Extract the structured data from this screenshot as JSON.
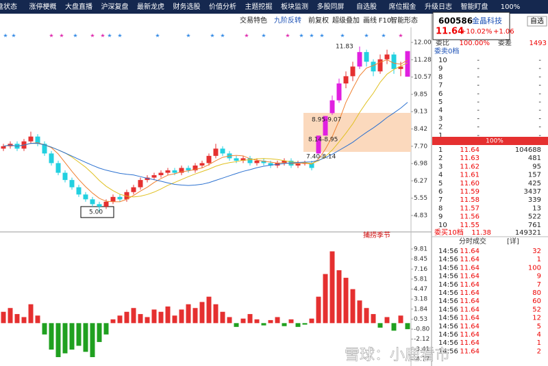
{
  "nav": [
    "盘状态",
    "涨停梗概",
    "大盘直播",
    "沪深复盘",
    "最新龙虎",
    "财务选股",
    "价值分析",
    "主题挖掘",
    "板块监测",
    "多股同屏",
    "自选股",
    "席位掘金",
    "升级日志",
    "智能盯盘",
    "100%"
  ],
  "toolbar": [
    "交易特色",
    "九阶反转",
    "前复权",
    "超级叠加",
    "画线",
    "F10",
    "智能形态"
  ],
  "search": "自选",
  "price_axis": [
    "12.00",
    "11.28",
    "10.57",
    "9.85",
    "9.13",
    "8.42",
    "7.70",
    "6.98",
    "6.27",
    "5.55",
    "4.83"
  ],
  "annotations": [
    "11.83",
    "8.95-9.07",
    "8.14-8.95",
    "7.40-8.14",
    "5.00"
  ],
  "candles": [
    [
      7.6,
      7.8,
      7.5,
      7.7
    ],
    [
      7.7,
      7.9,
      7.6,
      7.8
    ],
    [
      7.8,
      7.9,
      7.5,
      7.6
    ],
    [
      7.6,
      8.0,
      7.5,
      7.9
    ],
    [
      7.9,
      8.3,
      7.8,
      8.1
    ],
    [
      8.1,
      8.2,
      7.7,
      7.8
    ],
    [
      7.8,
      7.9,
      7.3,
      7.4
    ],
    [
      7.4,
      7.5,
      6.9,
      7.0
    ],
    [
      7.0,
      7.1,
      6.5,
      6.6
    ],
    [
      6.6,
      6.7,
      6.2,
      6.3
    ],
    [
      6.3,
      6.4,
      5.9,
      6.0
    ],
    [
      6.0,
      6.1,
      5.6,
      5.7
    ],
    [
      5.7,
      5.8,
      5.4,
      5.5
    ],
    [
      5.5,
      5.6,
      5.2,
      5.3
    ],
    [
      5.3,
      5.4,
      5.0,
      5.2
    ],
    [
      5.2,
      5.5,
      5.1,
      5.4
    ],
    [
      5.4,
      5.7,
      5.3,
      5.6
    ],
    [
      5.6,
      5.7,
      5.4,
      5.5
    ],
    [
      5.5,
      5.9,
      5.4,
      5.8
    ],
    [
      5.8,
      6.1,
      5.7,
      6.0
    ],
    [
      6.0,
      6.4,
      5.9,
      6.3
    ],
    [
      6.3,
      6.5,
      6.2,
      6.4
    ],
    [
      6.4,
      6.6,
      6.3,
      6.5
    ],
    [
      6.5,
      6.7,
      6.4,
      6.6
    ],
    [
      6.6,
      6.8,
      6.5,
      6.7
    ],
    [
      6.7,
      6.8,
      6.5,
      6.6
    ],
    [
      6.6,
      6.9,
      6.5,
      6.8
    ],
    [
      6.8,
      6.9,
      6.6,
      6.7
    ],
    [
      6.7,
      7.0,
      6.6,
      6.9
    ],
    [
      6.9,
      7.1,
      6.8,
      7.0
    ],
    [
      7.0,
      7.4,
      6.9,
      7.3
    ],
    [
      7.3,
      7.8,
      7.2,
      7.6
    ],
    [
      7.6,
      7.7,
      7.3,
      7.4
    ],
    [
      7.4,
      7.5,
      7.1,
      7.2
    ],
    [
      7.2,
      7.3,
      7.0,
      7.1
    ],
    [
      7.1,
      7.3,
      7.0,
      7.2
    ],
    [
      7.2,
      7.3,
      6.9,
      7.0
    ],
    [
      7.0,
      7.2,
      6.9,
      7.1
    ],
    [
      7.1,
      7.2,
      6.9,
      7.0
    ],
    [
      7.0,
      7.1,
      6.8,
      6.9
    ],
    [
      6.9,
      7.1,
      6.8,
      7.0
    ],
    [
      7.0,
      7.2,
      6.9,
      7.1
    ],
    [
      7.1,
      7.2,
      6.8,
      6.9
    ],
    [
      6.9,
      7.1,
      6.8,
      7.0
    ],
    [
      7.0,
      7.1,
      6.9,
      7.0
    ],
    [
      7.0,
      7.1,
      6.7,
      6.8
    ],
    [
      7.4,
      8.14,
      7.4,
      8.14
    ],
    [
      8.14,
      8.95,
      8.14,
      8.95
    ],
    [
      9.07,
      9.8,
      9.0,
      9.6
    ],
    [
      9.6,
      10.5,
      9.5,
      10.3
    ],
    [
      10.3,
      10.8,
      10.1,
      10.6
    ],
    [
      10.6,
      11.2,
      10.4,
      11.0
    ],
    [
      11.0,
      11.83,
      10.9,
      11.6
    ],
    [
      11.6,
      11.7,
      11.0,
      11.2
    ],
    [
      11.2,
      11.3,
      10.6,
      10.8
    ],
    [
      10.8,
      11.5,
      10.7,
      11.3
    ],
    [
      11.3,
      11.7,
      11.1,
      11.5
    ],
    [
      11.5,
      11.6,
      10.7,
      10.9
    ],
    [
      10.9,
      11.2,
      10.6,
      11.0
    ],
    [
      10.58,
      11.64,
      10.58,
      11.64
    ]
  ],
  "indicator": {
    "title": "捕捞季节",
    "axis": [
      "9.81",
      "8.45",
      "7.16",
      "5.81",
      "4.47",
      "3.18",
      "1.84",
      "0.53",
      "-0.80",
      "-2.12",
      "-3.41",
      "-4.77"
    ],
    "values": [
      1.5,
      2.0,
      1.2,
      0.8,
      2.5,
      1.0,
      -1.5,
      -3.5,
      -4.5,
      -4.0,
      -3.5,
      -3.0,
      -3.8,
      -4.5,
      -2.5,
      -1.5,
      0.5,
      1.0,
      1.5,
      2.0,
      1.2,
      0.8,
      1.8,
      1.5,
      2.2,
      1.0,
      1.8,
      2.5,
      2.0,
      2.8,
      3.5,
      2.5,
      1.5,
      0.8,
      -0.5,
      0.6,
      1.2,
      0.5,
      -0.3,
      0.4,
      0.8,
      -0.4,
      0.5,
      -0.5,
      -0.2,
      0.6,
      3.5,
      6.5,
      9.5,
      7.0,
      6.0,
      4.5,
      3.0,
      2.0,
      1.2,
      -0.6,
      0.8,
      -1.0,
      1.0,
      -0.8
    ]
  },
  "quote": {
    "code": "600586",
    "name": "金晶科技",
    "price": "11.64",
    "pct": "+10.02%",
    "chg": "+1.06"
  },
  "book": {
    "ratio_label": "委比",
    "ratio": "100.00%",
    "diff_label": "委差",
    "diff": "1493",
    "sell_title": "委卖0档",
    "sell": [
      [
        "10",
        "-",
        "-"
      ],
      [
        "9",
        "-",
        "-"
      ],
      [
        "8",
        "-",
        "-"
      ],
      [
        "7",
        "-",
        "-"
      ],
      [
        "6",
        "-",
        "-"
      ],
      [
        "5",
        "-",
        "-"
      ],
      [
        "4",
        "-",
        "-"
      ],
      [
        "3",
        "-",
        "-"
      ],
      [
        "2",
        "-",
        "-"
      ],
      [
        "1",
        "-",
        "-"
      ]
    ],
    "bar": "100%",
    "buy": [
      [
        "1",
        "11.64",
        "104688"
      ],
      [
        "2",
        "11.63",
        "481"
      ],
      [
        "3",
        "11.62",
        "95"
      ],
      [
        "4",
        "11.61",
        "157"
      ],
      [
        "5",
        "11.60",
        "425"
      ],
      [
        "6",
        "11.59",
        "3437"
      ],
      [
        "7",
        "11.58",
        "339"
      ],
      [
        "8",
        "11.57",
        "13"
      ],
      [
        "9",
        "11.56",
        "522"
      ],
      [
        "10",
        "11.55",
        "761"
      ]
    ],
    "buy_title": "委买10档",
    "buy_avg": "11.38",
    "buy_total": "149321"
  },
  "trades": {
    "title": "分时成交",
    "detail": "[详]",
    "rows": [
      [
        "14:56",
        "11.64",
        "32"
      ],
      [
        "14:56",
        "11.64",
        "1"
      ],
      [
        "14:56",
        "11.64",
        "100"
      ],
      [
        "14:56",
        "11.64",
        "9"
      ],
      [
        "14:56",
        "11.64",
        "7"
      ],
      [
        "14:56",
        "11.64",
        "80"
      ],
      [
        "14:56",
        "11.64",
        "60"
      ],
      [
        "14:56",
        "11.64",
        "52"
      ],
      [
        "14:56",
        "11.64",
        "12"
      ],
      [
        "14:56",
        "11.64",
        "5"
      ],
      [
        "14:56",
        "11.64",
        "4"
      ],
      [
        "14:56",
        "11.64",
        "1"
      ],
      [
        "14:56",
        "11.64",
        "2"
      ]
    ]
  },
  "watermark": "雪球：小鹿看市"
}
